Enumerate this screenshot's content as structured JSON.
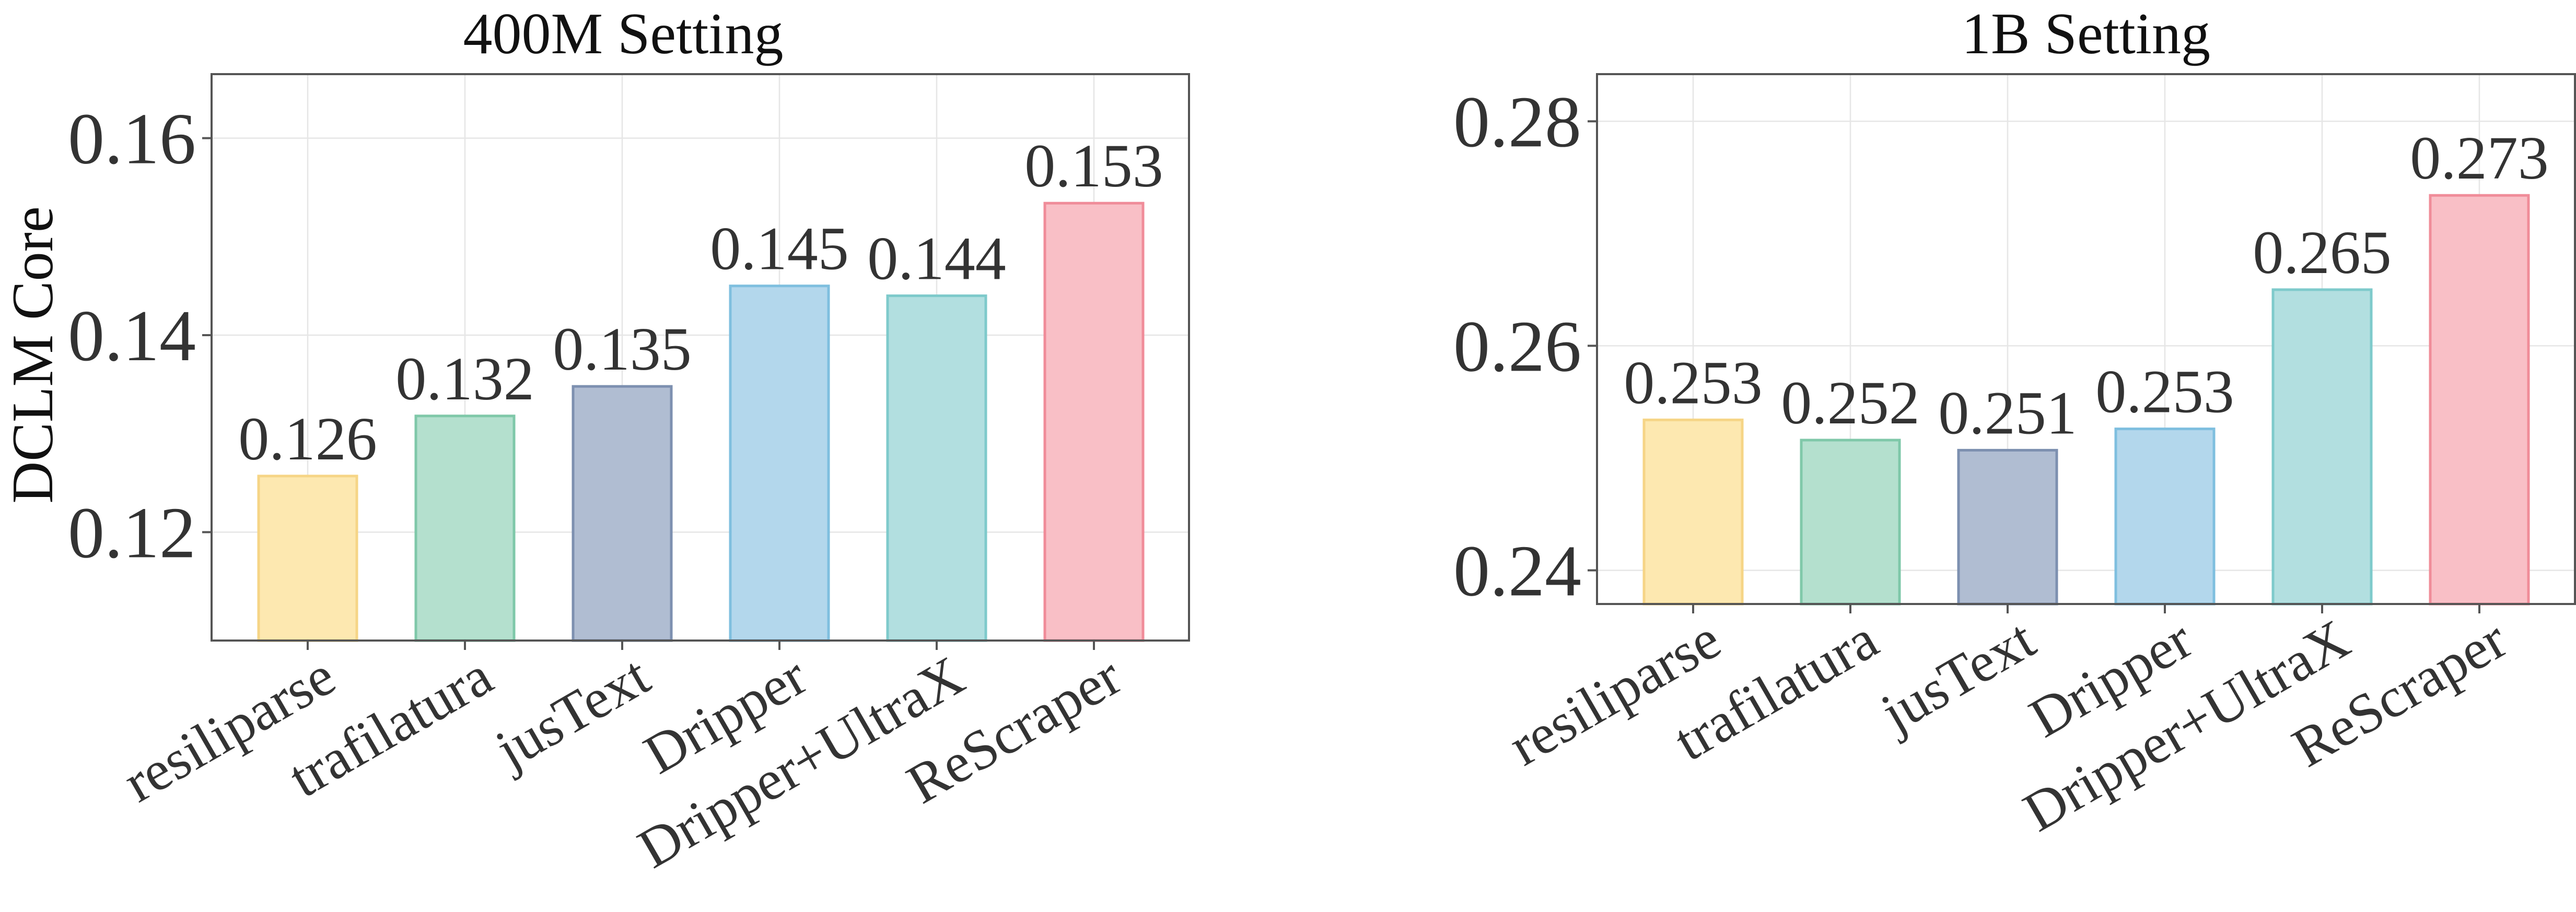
{
  "chart_data": [
    {
      "type": "bar",
      "title": "400M Setting",
      "ylabel": "DCLM Core",
      "xlabel": "",
      "categories": [
        "resiliparse",
        "trafilatura",
        "jusText",
        "Dripper",
        "Dripper+UltraX",
        "ReScraper"
      ],
      "values": [
        0.1257,
        0.1318,
        0.1348,
        0.145,
        0.144,
        0.1534
      ],
      "data_labels": [
        "0.126",
        "0.132",
        "0.135",
        "0.145",
        "0.144",
        "0.153"
      ],
      "ylim": [
        0.109,
        0.1665
      ],
      "yticks": [
        0.12,
        0.14,
        0.16
      ],
      "ytick_labels": [
        "0.12",
        "0.14",
        "0.16"
      ],
      "grid": true,
      "legend": "none"
    },
    {
      "type": "bar",
      "title": "1B Setting",
      "ylabel": "",
      "xlabel": "",
      "categories": [
        "resiliparse",
        "trafilatura",
        "jusText",
        "Dripper",
        "Dripper+UltraX",
        "ReScraper"
      ],
      "values": [
        0.2534,
        0.2516,
        0.2507,
        0.2526,
        0.265,
        0.2734
      ],
      "data_labels": [
        "0.253",
        "0.252",
        "0.251",
        "0.253",
        "0.265",
        "0.273"
      ],
      "ylim": [
        0.237,
        0.2842
      ],
      "yticks": [
        0.24,
        0.26,
        0.28
      ],
      "ytick_labels": [
        "0.24",
        "0.26",
        "0.28"
      ],
      "grid": true,
      "legend": "none"
    }
  ],
  "colors": {
    "bar_fills": [
      "#fde8b0",
      "#b4e0ce",
      "#b0bdd2",
      "#b3d7ec",
      "#b2dfe0",
      "#f9bfc6"
    ],
    "bar_strokes": [
      "#f6d586",
      "#7fc8a9",
      "#7d90b0",
      "#7fbfdf",
      "#7ecacb",
      "#f08c99"
    ]
  }
}
